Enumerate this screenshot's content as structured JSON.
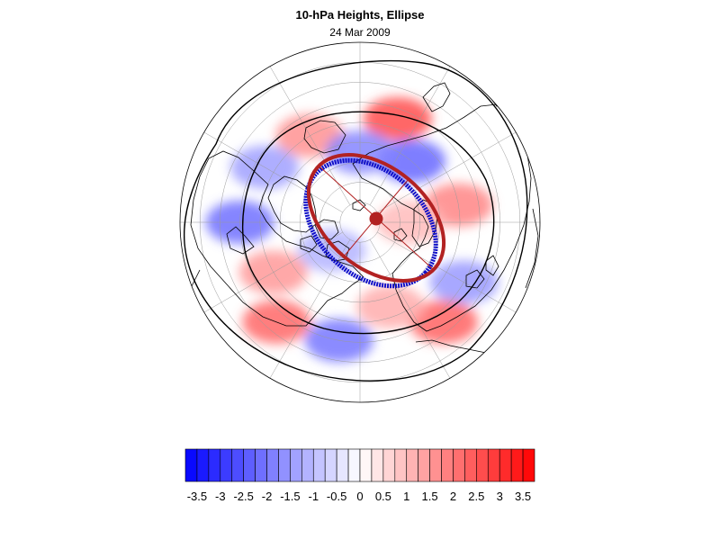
{
  "figure": {
    "title": "10-hPa Heights, Ellipse",
    "subtitle": "24 Mar 2009"
  },
  "colorbar": {
    "tick_labels": [
      "-3.5",
      "-3",
      "-2.5",
      "-2",
      "-1.5",
      "-1",
      "-0.5",
      "0",
      "0.5",
      "1",
      "1.5",
      "2",
      "2.5",
      "3",
      "3.5"
    ],
    "min": -3.75,
    "max": 3.75,
    "step": 0.25,
    "low_color": "#0000ff",
    "mid_color": "#ffffff",
    "high_color": "#ff0000"
  },
  "map": {
    "projection": "polar-stereographic-north",
    "ocean_color": "#ffffff",
    "coastline_color": "#000000",
    "contour_color": "#000000",
    "ellipse_blue_color": "#1010c8",
    "ellipse_red_color": "#b22222",
    "center_marker_color": "#b22222",
    "anomaly_blobs": [
      {
        "lon": 160,
        "lat": 35,
        "value": 2.6
      },
      {
        "lon": 140,
        "lat": 50,
        "value": -2.2
      },
      {
        "lon": 100,
        "lat": 40,
        "value": 1.8
      },
      {
        "lon": 60,
        "lat": 30,
        "value": -1.5
      },
      {
        "lon": 40,
        "lat": 25,
        "value": 2.3
      },
      {
        "lon": 20,
        "lat": 45,
        "value": 1.2
      },
      {
        "lon": -10,
        "lat": 30,
        "value": -2.0
      },
      {
        "lon": -40,
        "lat": 25,
        "value": 2.2
      },
      {
        "lon": -60,
        "lat": 40,
        "value": 1.5
      },
      {
        "lon": -90,
        "lat": 30,
        "value": -2.1
      },
      {
        "lon": -120,
        "lat": 35,
        "value": -1.4
      },
      {
        "lon": -150,
        "lat": 40,
        "value": 1.6
      },
      {
        "lon": 180,
        "lat": 55,
        "value": -1.8
      },
      {
        "lon": 90,
        "lat": 65,
        "value": 1.0
      },
      {
        "lon": -45,
        "lat": 70,
        "value": -1.1
      }
    ]
  }
}
